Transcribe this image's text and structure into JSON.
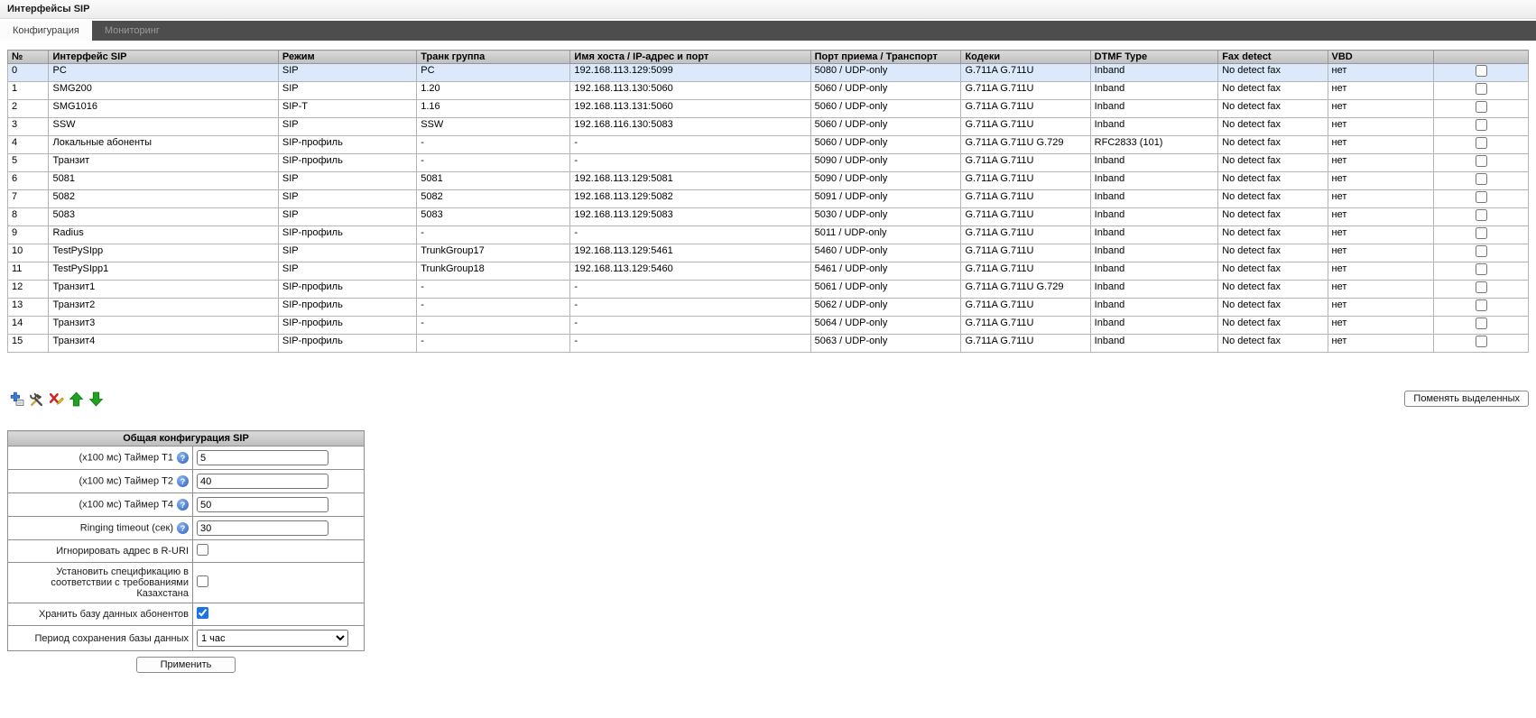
{
  "page": {
    "title": "Интерфейсы SIP"
  },
  "tabs": [
    {
      "label": "Конфигурация",
      "active": true
    },
    {
      "label": "Мониторинг",
      "active": false
    }
  ],
  "table": {
    "columns": [
      "№",
      "Интерфейс SIP",
      "Режим",
      "Транк группа",
      "Имя хоста / IP-адрес и порт",
      "Порт приема / Транспорт",
      "Кодеки",
      "DTMF Type",
      "Fax detect",
      "VBD",
      ""
    ],
    "rows": [
      {
        "num": "0",
        "interface": "PC",
        "mode": "SIP",
        "trunk": "PC",
        "host": "192.168.113.129:5099",
        "port": "5080 / UDP-only",
        "codecs": [
          "G.711A",
          "G.711U"
        ],
        "dtmf": "Inband",
        "fax": "No detect fax",
        "vbd": "нет",
        "selected": true,
        "checked": false
      },
      {
        "num": "1",
        "interface": "SMG200",
        "mode": "SIP",
        "trunk": "1.20",
        "host": "192.168.113.130:5060",
        "port": "5060 / UDP-only",
        "codecs": [
          "G.711A",
          "G.711U"
        ],
        "dtmf": "Inband",
        "fax": "No detect fax",
        "vbd": "нет",
        "selected": false,
        "checked": false
      },
      {
        "num": "2",
        "interface": "SMG1016",
        "mode": "SIP-T",
        "trunk": "1.16",
        "host": "192.168.113.131:5060",
        "port": "5060 / UDP-only",
        "codecs": [
          "G.711A",
          "G.711U"
        ],
        "dtmf": "Inband",
        "fax": "No detect fax",
        "vbd": "нет",
        "selected": false,
        "checked": false
      },
      {
        "num": "3",
        "interface": "SSW",
        "mode": "SIP",
        "trunk": "SSW",
        "host": "192.168.116.130:5083",
        "port": "5060 / UDP-only",
        "codecs": [
          "G.711A",
          "G.711U"
        ],
        "dtmf": "Inband",
        "fax": "No detect fax",
        "vbd": "нет",
        "selected": false,
        "checked": false
      },
      {
        "num": "4",
        "interface": "Локальные абоненты",
        "mode": "SIP-профиль",
        "trunk": "-",
        "host": "-",
        "port": "5060 / UDP-only",
        "codecs": [
          "G.711A",
          "G.711U",
          "G.729"
        ],
        "dtmf": "RFC2833 (101)",
        "fax": "No detect fax",
        "vbd": "нет",
        "selected": false,
        "checked": false
      },
      {
        "num": "5",
        "interface": "Транзит",
        "mode": "SIP-профиль",
        "trunk": "-",
        "host": "-",
        "port": "5090 / UDP-only",
        "codecs": [
          "G.711A",
          "G.711U"
        ],
        "dtmf": "Inband",
        "fax": "No detect fax",
        "vbd": "нет",
        "selected": false,
        "checked": false
      },
      {
        "num": "6",
        "interface": "5081",
        "mode": "SIP",
        "trunk": "5081",
        "host": "192.168.113.129:5081",
        "port": "5090 / UDP-only",
        "codecs": [
          "G.711A",
          "G.711U"
        ],
        "dtmf": "Inband",
        "fax": "No detect fax",
        "vbd": "нет",
        "selected": false,
        "checked": false
      },
      {
        "num": "7",
        "interface": "5082",
        "mode": "SIP",
        "trunk": "5082",
        "host": "192.168.113.129:5082",
        "port": "5091 / UDP-only",
        "codecs": [
          "G.711A",
          "G.711U"
        ],
        "dtmf": "Inband",
        "fax": "No detect fax",
        "vbd": "нет",
        "selected": false,
        "checked": false
      },
      {
        "num": "8",
        "interface": "5083",
        "mode": "SIP",
        "trunk": "5083",
        "host": "192.168.113.129:5083",
        "port": "5030 / UDP-only",
        "codecs": [
          "G.711A",
          "G.711U"
        ],
        "dtmf": "Inband",
        "fax": "No detect fax",
        "vbd": "нет",
        "selected": false,
        "checked": false
      },
      {
        "num": "9",
        "interface": "Radius",
        "mode": "SIP-профиль",
        "trunk": "-",
        "host": "-",
        "port": "5011 / UDP-only",
        "codecs": [
          "G.711A",
          "G.711U"
        ],
        "dtmf": "Inband",
        "fax": "No detect fax",
        "vbd": "нет",
        "selected": false,
        "checked": false
      },
      {
        "num": "10",
        "interface": "TestPySIpp",
        "mode": "SIP",
        "trunk": "TrunkGroup17",
        "host": "192.168.113.129:5461",
        "port": "5460 / UDP-only",
        "codecs": [
          "G.711A",
          "G.711U"
        ],
        "dtmf": "Inband",
        "fax": "No detect fax",
        "vbd": "нет",
        "selected": false,
        "checked": false
      },
      {
        "num": "11",
        "interface": "TestPySIpp1",
        "mode": "SIP",
        "trunk": "TrunkGroup18",
        "host": "192.168.113.129:5460",
        "port": "5461 / UDP-only",
        "codecs": [
          "G.711A",
          "G.711U"
        ],
        "dtmf": "Inband",
        "fax": "No detect fax",
        "vbd": "нет",
        "selected": false,
        "checked": false
      },
      {
        "num": "12",
        "interface": "Транзит1",
        "mode": "SIP-профиль",
        "trunk": "-",
        "host": "-",
        "port": "5061 / UDP-only",
        "codecs": [
          "G.711A",
          "G.711U",
          "G.729"
        ],
        "dtmf": "Inband",
        "fax": "No detect fax",
        "vbd": "нет",
        "selected": false,
        "checked": false
      },
      {
        "num": "13",
        "interface": "Транзит2",
        "mode": "SIP-профиль",
        "trunk": "-",
        "host": "-",
        "port": "5062 / UDP-only",
        "codecs": [
          "G.711A",
          "G.711U"
        ],
        "dtmf": "Inband",
        "fax": "No detect fax",
        "vbd": "нет",
        "selected": false,
        "checked": false
      },
      {
        "num": "14",
        "interface": "Транзит3",
        "mode": "SIP-профиль",
        "trunk": "-",
        "host": "-",
        "port": "5064 / UDP-only",
        "codecs": [
          "G.711A",
          "G.711U"
        ],
        "dtmf": "Inband",
        "fax": "No detect fax",
        "vbd": "нет",
        "selected": false,
        "checked": false
      },
      {
        "num": "15",
        "interface": "Транзит4",
        "mode": "SIP-профиль",
        "trunk": "-",
        "host": "-",
        "port": "5063 / UDP-only",
        "codecs": [
          "G.711A",
          "G.711U"
        ],
        "dtmf": "Inband",
        "fax": "No detect fax",
        "vbd": "нет",
        "selected": false,
        "checked": false
      }
    ]
  },
  "toolbar": {
    "icons": [
      "add-interface-icon",
      "edit-interface-icon",
      "delete-interface-icon",
      "move-up-icon",
      "move-down-icon"
    ]
  },
  "buttons": {
    "swap_selected": "Поменять выделенных"
  },
  "form": {
    "title": "Общая конфигурация SIP",
    "fields": [
      {
        "label": "(x100 мс) Таймер T1",
        "type": "text",
        "value": "5",
        "help": true
      },
      {
        "label": "(x100 мс) Таймер T2",
        "type": "text",
        "value": "40",
        "help": true
      },
      {
        "label": "(x100 мс) Таймер T4",
        "type": "text",
        "value": "50",
        "help": true
      },
      {
        "label": "Ringing timeout (сек)",
        "type": "text",
        "value": "30",
        "help": true
      },
      {
        "label": "Игнорировать адрес в R-URI",
        "type": "checkbox",
        "checked": false
      },
      {
        "label": "Установить спецификацию в соответствии с требованиями Казахстана",
        "type": "checkbox",
        "checked": false
      },
      {
        "label": "Хранить базу данных абонентов",
        "type": "checkbox",
        "checked": true
      },
      {
        "label": "Период сохранения базы данных",
        "type": "select",
        "value": "1 час"
      }
    ],
    "apply_label": "Применить"
  },
  "colors": {
    "selected_row": "#dbe9fb",
    "tabbar": "#4d4d4d",
    "checkbox_accent": "#1a73e8"
  }
}
